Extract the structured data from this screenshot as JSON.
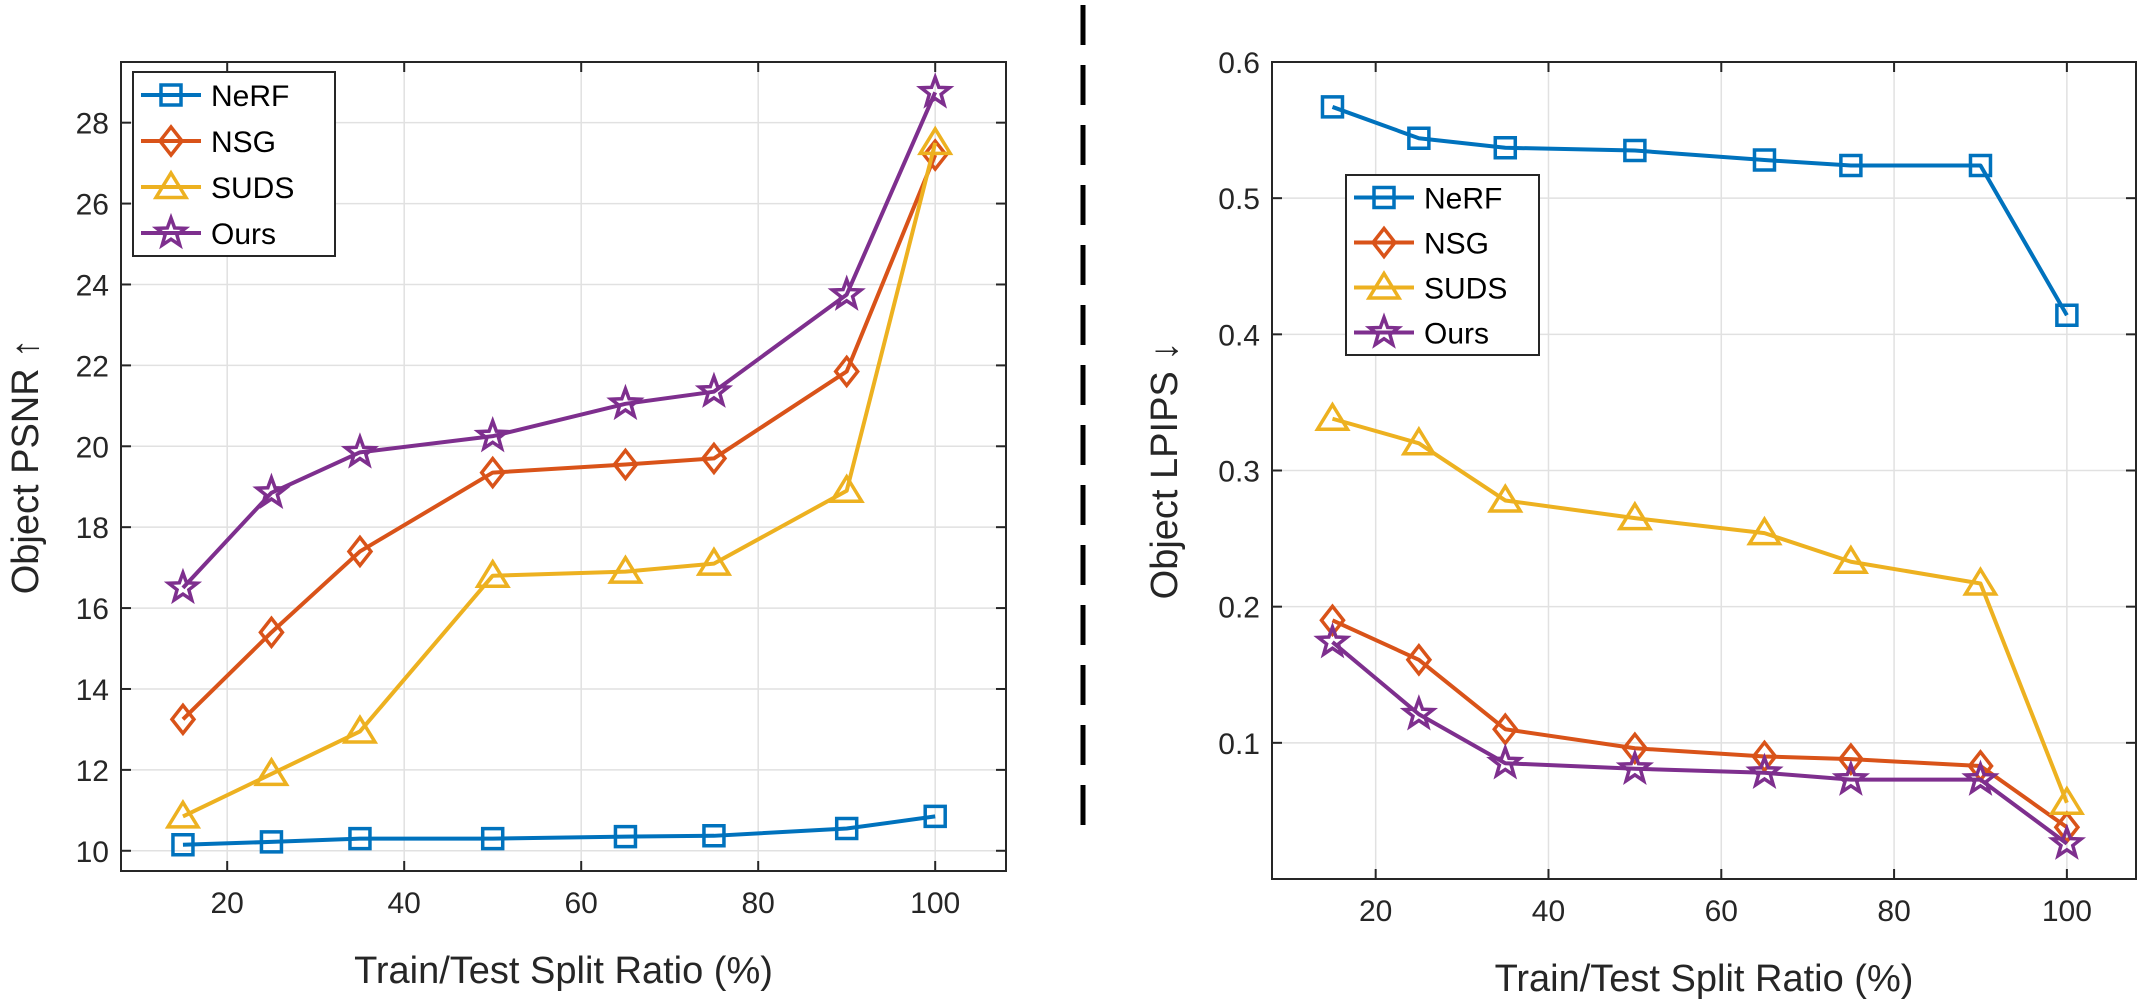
{
  "chart_data": [
    {
      "type": "line",
      "xlabel": "Train/Test Split Ratio (%)",
      "ylabel": "Object PSNR ↑",
      "xlim": [
        8,
        108
      ],
      "ylim": [
        9.5,
        29.5
      ],
      "xticks": [
        20,
        40,
        60,
        80,
        100
      ],
      "yticks": [
        10,
        12,
        14,
        16,
        18,
        20,
        22,
        24,
        26,
        28
      ],
      "grid": true,
      "legend_position": "top-left",
      "x": [
        15,
        25,
        35,
        50,
        65,
        75,
        90,
        100
      ],
      "series": [
        {
          "name": "NeRF",
          "color": "#0072BD",
          "marker": "square",
          "values": [
            10.15,
            10.22,
            10.3,
            10.3,
            10.35,
            10.37,
            10.55,
            10.85
          ]
        },
        {
          "name": "NSG",
          "color": "#D95319",
          "marker": "diamond",
          "values": [
            13.25,
            15.4,
            17.4,
            19.35,
            19.55,
            19.7,
            21.85,
            27.2
          ]
        },
        {
          "name": "SUDS",
          "color": "#EDB120",
          "marker": "triangle",
          "values": [
            10.85,
            11.9,
            12.95,
            16.8,
            16.9,
            17.1,
            18.9,
            27.5
          ]
        },
        {
          "name": "Ours",
          "color": "#7E2F8E",
          "marker": "star",
          "values": [
            16.5,
            18.85,
            19.85,
            20.25,
            21.05,
            21.35,
            23.75,
            28.75
          ]
        }
      ]
    },
    {
      "type": "line",
      "xlabel": "Train/Test Split Ratio (%)",
      "ylabel": "Object LPIPS ↓",
      "xlim": [
        8,
        108
      ],
      "ylim": [
        0.0,
        0.6
      ],
      "xticks": [
        20,
        40,
        60,
        80,
        100
      ],
      "yticks": [
        0.1,
        0.2,
        0.3,
        0.4,
        0.5,
        0.6
      ],
      "ytick_labels": [
        "0.1",
        "0.2",
        "0.3",
        "0.4",
        "0.5",
        "0.6"
      ],
      "grid": true,
      "legend_position": "upper-left-inside",
      "x": [
        15,
        25,
        35,
        50,
        65,
        75,
        90,
        100
      ],
      "series": [
        {
          "name": "NeRF",
          "color": "#0072BD",
          "marker": "square",
          "values": [
            0.567,
            0.544,
            0.537,
            0.535,
            0.528,
            0.524,
            0.524,
            0.414
          ]
        },
        {
          "name": "NSG",
          "color": "#D95319",
          "marker": "diamond",
          "values": [
            0.19,
            0.161,
            0.11,
            0.096,
            0.09,
            0.088,
            0.083,
            0.038
          ]
        },
        {
          "name": "SUDS",
          "color": "#EDB120",
          "marker": "triangle",
          "values": [
            0.338,
            0.32,
            0.278,
            0.265,
            0.254,
            0.233,
            0.217,
            0.056
          ]
        },
        {
          "name": "Ours",
          "color": "#7E2F8E",
          "marker": "star",
          "values": [
            0.174,
            0.121,
            0.085,
            0.081,
            0.078,
            0.073,
            0.073,
            0.026
          ]
        }
      ]
    }
  ]
}
